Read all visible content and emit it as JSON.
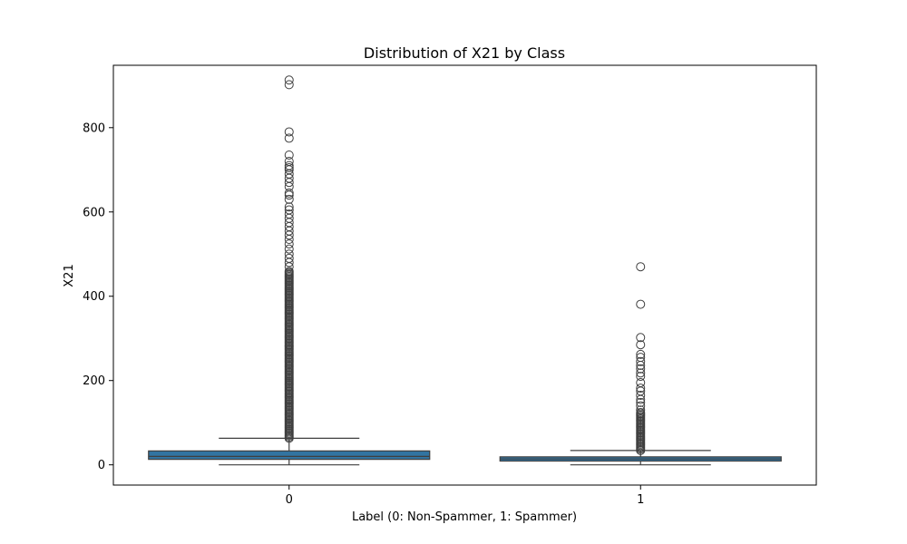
{
  "chart_data": {
    "type": "box",
    "title": "Distribution of X21 by Class",
    "xlabel": "Label (0: Non-Spammer, 1: Spammer)",
    "ylabel": "X21",
    "categories": [
      "0",
      "1"
    ],
    "ylim": [
      -48,
      948
    ],
    "yticks": [
      0,
      200,
      400,
      600,
      800
    ],
    "grid": false,
    "box_color": "#3274a1",
    "line_color": "#3f3f3f",
    "boxes": [
      {
        "category": "0",
        "whisker_low": 0,
        "q1": 13,
        "median": 20,
        "q3": 33,
        "whisker_high": 63,
        "outlier_range": [
          63,
          460
        ],
        "outliers": [
          470,
          480,
          490,
          500,
          512,
          524,
          535,
          545,
          555,
          565,
          575,
          585,
          595,
          605,
          612,
          630,
          640,
          645,
          660,
          670,
          680,
          690,
          700,
          705,
          710,
          720,
          735,
          775,
          790,
          902,
          913
        ]
      },
      {
        "category": "1",
        "whisker_low": 0,
        "q1": 9,
        "median": 14,
        "q3": 19,
        "whisker_high": 34,
        "outlier_range": [
          34,
          125
        ],
        "outliers": [
          130,
          140,
          148,
          155,
          165,
          175,
          182,
          195,
          210,
          218,
          228,
          236,
          245,
          255,
          262,
          285,
          302,
          381,
          470
        ]
      }
    ]
  }
}
